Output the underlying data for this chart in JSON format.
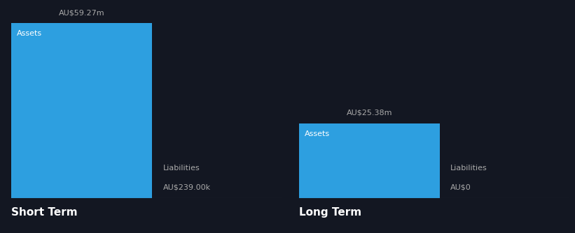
{
  "background_color": "#131722",
  "bar_color": "#2D9FE0",
  "text_color_white": "#ffffff",
  "text_color_light": "#aaaaaa",
  "short_term": {
    "asset_value": 59.27,
    "liability_value": 0.239,
    "asset_label": "Assets",
    "liability_label": "Liabilities",
    "asset_value_label": "AU$59.27m",
    "liability_value_label": "AU$239.00k",
    "group_label": "Short Term"
  },
  "long_term": {
    "asset_value": 25.38,
    "liability_value": 0,
    "asset_label": "Assets",
    "liability_label": "Liabilities",
    "asset_value_label": "AU$25.38m",
    "liability_value_label": "AU$0",
    "group_label": "Long Term"
  },
  "max_value": 59.27,
  "figsize": [
    8.21,
    3.34
  ],
  "dpi": 100
}
